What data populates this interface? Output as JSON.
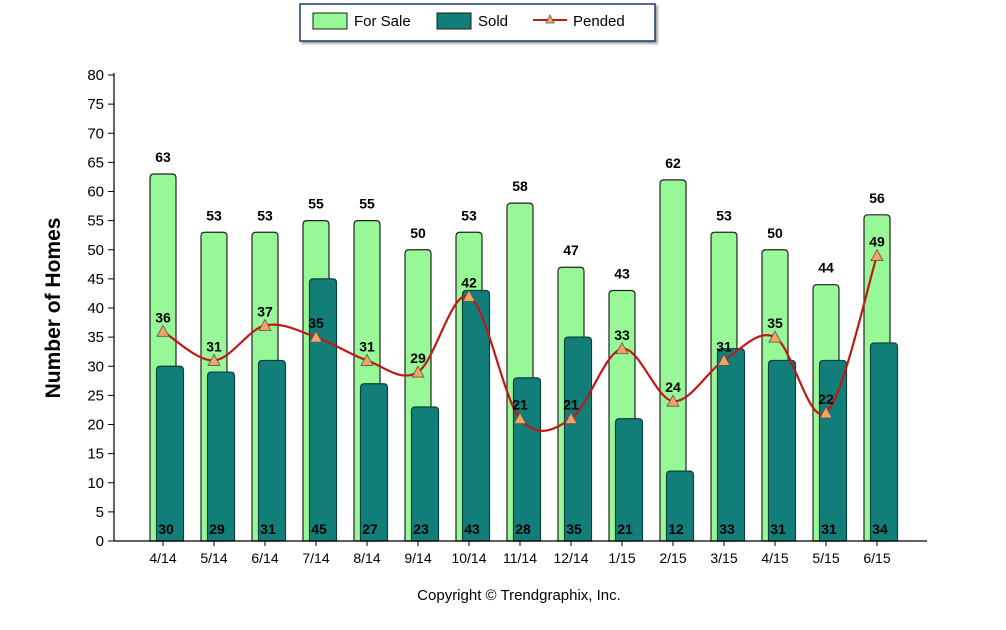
{
  "chart_data": {
    "type": "bar",
    "categories": [
      "4/14",
      "5/14",
      "6/14",
      "7/14",
      "8/14",
      "9/14",
      "10/14",
      "11/14",
      "12/14",
      "1/15",
      "2/15",
      "3/15",
      "4/15",
      "5/15",
      "6/15"
    ],
    "series": [
      {
        "name": "For Sale",
        "type": "bar",
        "color": "#98F898",
        "values": [
          63,
          53,
          53,
          55,
          55,
          50,
          53,
          58,
          47,
          43,
          62,
          53,
          50,
          44,
          56
        ]
      },
      {
        "name": "Sold",
        "type": "bar",
        "color": "#127E7A",
        "values": [
          30,
          29,
          31,
          45,
          27,
          23,
          43,
          28,
          35,
          21,
          12,
          33,
          31,
          31,
          34
        ]
      },
      {
        "name": "Pended",
        "type": "line",
        "color": "#C01818",
        "marker": "triangle",
        "marker_color": "#F4A460",
        "values": [
          36,
          31,
          37,
          35,
          31,
          29,
          42,
          21,
          21,
          33,
          24,
          31,
          35,
          22,
          49
        ]
      }
    ],
    "title": "",
    "xlabel": "",
    "ylabel": "Number of Homes",
    "ylim": [
      0,
      80
    ],
    "yticks": [
      0,
      5,
      10,
      15,
      20,
      25,
      30,
      35,
      40,
      45,
      50,
      55,
      60,
      65,
      70,
      75,
      80
    ],
    "legend_position": "top-center",
    "grid": false
  },
  "footer": {
    "copyright": "Copyright © Trendgraphix, Inc."
  }
}
